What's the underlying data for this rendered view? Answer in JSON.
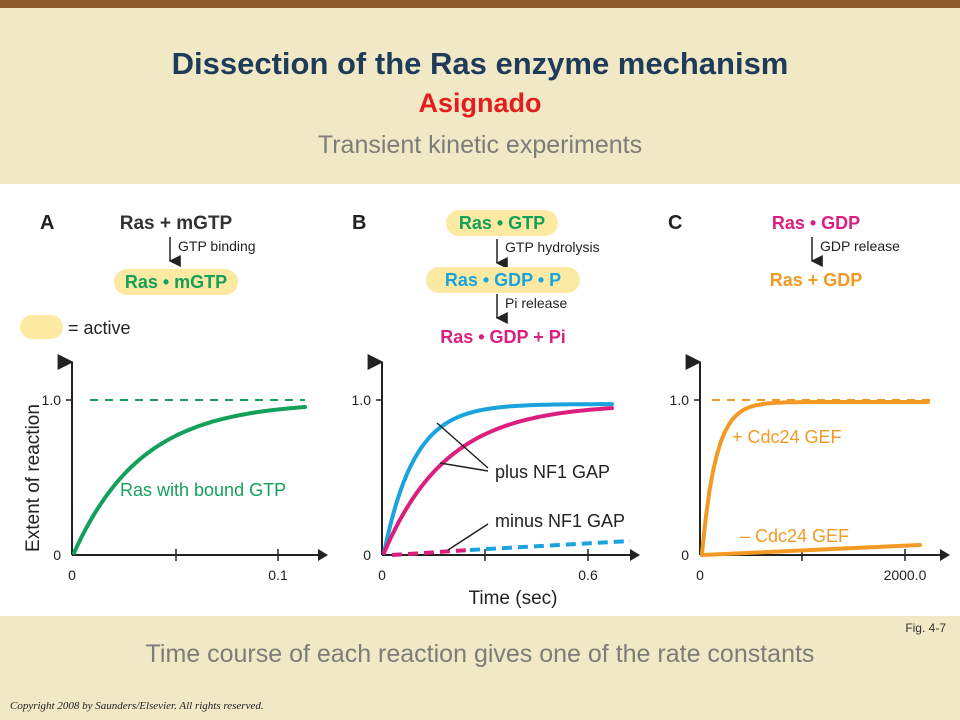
{
  "header": {
    "title": "Dissection of the Ras enzyme mechanism",
    "subtitle": "Asignado",
    "section": "Transient kinetic experiments"
  },
  "footer": {
    "caption": "Time course of each reaction gives one of the rate constants",
    "fig_label": "Fig. 4-7",
    "copyright": "Copyright 2008 by Saunders/Elsevier. All rights reserved."
  },
  "colors": {
    "green": "#14a05a",
    "blue": "#1aa3dd",
    "magenta": "#dc1f7e",
    "orange": "#f39a25",
    "active": "#fdeaa2"
  },
  "panelA": {
    "letter": "A",
    "reactant": "Ras + mGTP",
    "step": "GTP binding",
    "product": "Ras • mGTP",
    "legend": "= active",
    "curve_label": "Ras with bound GTP",
    "xticks": [
      "0",
      "0.1"
    ],
    "yticks": [
      "0",
      "1.0"
    ]
  },
  "panelB": {
    "letter": "B",
    "species1": "Ras • GTP",
    "step1": "GTP hydrolysis",
    "species2": "Ras • GDP • P",
    "step2": "Pi release",
    "species3": "Ras • GDP + Pi",
    "plus_label": "plus NF1 GAP",
    "minus_label": "minus NF1 GAP",
    "xticks": [
      "0",
      "0.6"
    ],
    "yticks": [
      "0",
      "1.0"
    ]
  },
  "panelC": {
    "letter": "C",
    "species1": "Ras • GDP",
    "step": "GDP release",
    "species2": "Ras + GDP",
    "plus_label": "+ Cdc24 GEF",
    "minus_label": "– Cdc24 GEF",
    "xticks": [
      "0",
      "2000.0"
    ],
    "yticks": [
      "0",
      "1.0"
    ]
  },
  "axes": {
    "ylabel": "Extent of reaction",
    "xlabel": "Time (sec)"
  }
}
